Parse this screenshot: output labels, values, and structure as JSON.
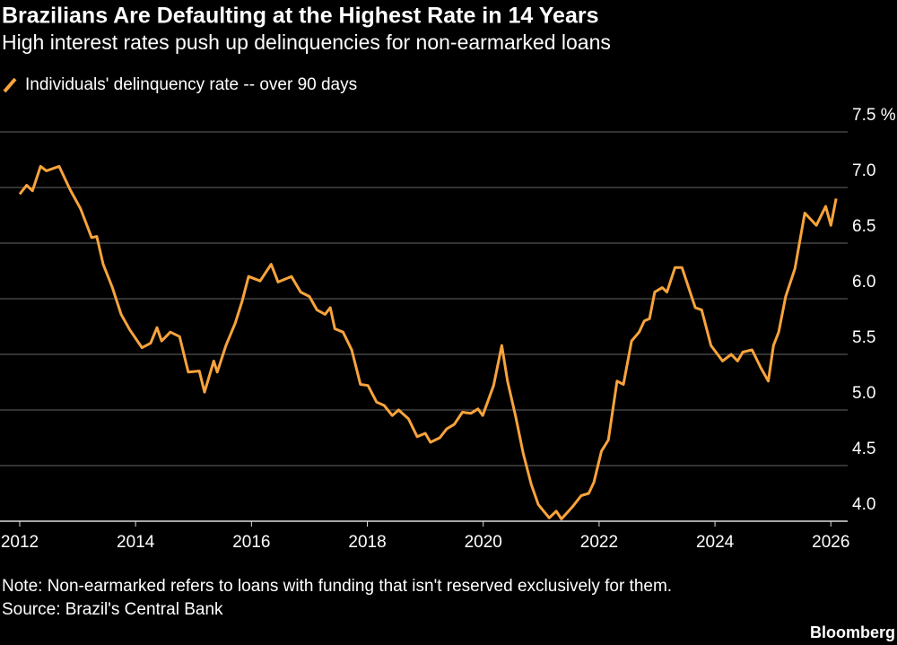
{
  "chart_data": {
    "type": "line",
    "title": "Brazilians Are Defaulting at the Highest Rate in 14 Years",
    "subtitle": "High interest rates push up delinquencies for non-earmarked loans",
    "note": "Note: Non-earmarked refers to loans with funding that isn't reserved exclusively for them.",
    "source": "Source: Brazil's Central Bank",
    "brand": "Bloomberg",
    "grid": true,
    "xlim": [
      2011.66,
      2026.29
    ],
    "xticks": [
      2012,
      2014,
      2016,
      2018,
      2020,
      2022,
      2024,
      2026
    ],
    "ylim": [
      4.0,
      7.5
    ],
    "yticks": [
      {
        "value": 4.0,
        "label": "4.0"
      },
      {
        "value": 4.5,
        "label": "4.5"
      },
      {
        "value": 5.0,
        "label": "5.0"
      },
      {
        "value": 5.5,
        "label": "5.5"
      },
      {
        "value": 6.0,
        "label": "6.0"
      },
      {
        "value": 6.5,
        "label": "6.5"
      },
      {
        "value": 7.0,
        "label": "7.0"
      },
      {
        "value": 7.5,
        "label": "7.5 %"
      }
    ],
    "x": [
      2012.0,
      2012.12,
      2012.22,
      2012.36,
      2012.46,
      2012.68,
      2012.87,
      2013.05,
      2013.24,
      2013.33,
      2013.44,
      2013.6,
      2013.75,
      2013.9,
      2014.11,
      2014.26,
      2014.37,
      2014.45,
      2014.6,
      2014.76,
      2014.91,
      2015.1,
      2015.19,
      2015.35,
      2015.41,
      2015.56,
      2015.72,
      2015.84,
      2015.95,
      2016.15,
      2016.34,
      2016.46,
      2016.69,
      2016.85,
      2017.0,
      2017.13,
      2017.27,
      2017.36,
      2017.44,
      2017.58,
      2017.73,
      2017.88,
      2018.01,
      2018.16,
      2018.29,
      2018.43,
      2018.54,
      2018.71,
      2018.86,
      2019.0,
      2019.09,
      2019.25,
      2019.37,
      2019.5,
      2019.64,
      2019.79,
      2019.91,
      2019.99,
      2020.18,
      2020.32,
      2020.42,
      2020.56,
      2020.69,
      2020.83,
      2020.95,
      2021.14,
      2021.26,
      2021.35,
      2021.54,
      2021.69,
      2021.82,
      2021.91,
      2022.04,
      2022.16,
      2022.31,
      2022.42,
      2022.56,
      2022.69,
      2022.78,
      2022.87,
      2022.96,
      2023.09,
      2023.17,
      2023.31,
      2023.43,
      2023.66,
      2023.77,
      2023.93,
      2024.13,
      2024.28,
      2024.39,
      2024.48,
      2024.64,
      2024.79,
      2024.92,
      2025.01,
      2025.1,
      2025.22,
      2025.38,
      2025.55,
      2025.75,
      2025.91,
      2026.0,
      2026.09
    ],
    "series": [
      {
        "name": "Individuals' delinquency rate -- over 90 days",
        "color": "#f8a33c",
        "values": [
          6.94,
          7.02,
          6.97,
          7.19,
          7.15,
          7.19,
          6.98,
          6.81,
          6.55,
          6.56,
          6.31,
          6.1,
          5.86,
          5.72,
          5.56,
          5.6,
          5.74,
          5.62,
          5.7,
          5.66,
          5.34,
          5.35,
          5.16,
          5.44,
          5.34,
          5.58,
          5.78,
          5.98,
          6.2,
          6.16,
          6.31,
          6.15,
          6.2,
          6.06,
          6.02,
          5.9,
          5.86,
          5.92,
          5.73,
          5.7,
          5.54,
          5.23,
          5.22,
          5.07,
          5.04,
          4.95,
          5.0,
          4.92,
          4.76,
          4.79,
          4.71,
          4.75,
          4.83,
          4.87,
          4.98,
          4.97,
          5.01,
          4.95,
          5.22,
          5.58,
          5.26,
          4.94,
          4.61,
          4.33,
          4.15,
          4.03,
          4.09,
          4.02,
          4.13,
          4.23,
          4.25,
          4.35,
          4.63,
          4.73,
          5.26,
          5.23,
          5.62,
          5.7,
          5.8,
          5.82,
          6.06,
          6.1,
          6.06,
          6.28,
          6.28,
          5.92,
          5.9,
          5.58,
          5.44,
          5.5,
          5.44,
          5.52,
          5.54,
          5.38,
          5.26,
          5.58,
          5.7,
          6.02,
          6.27,
          6.77,
          6.66,
          6.83,
          6.66,
          6.9
        ]
      }
    ]
  }
}
